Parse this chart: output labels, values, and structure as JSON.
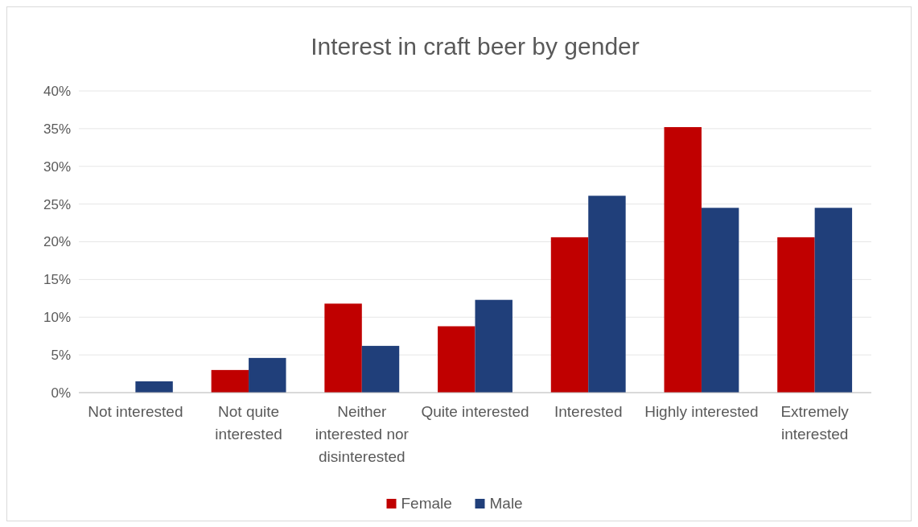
{
  "chart_data": {
    "type": "bar",
    "title": "Interest in craft beer by gender",
    "categories": [
      "Not interested",
      "Not quite interested",
      "Neither interested nor disinterested",
      "Quite interested",
      "Interested",
      "Highly interested",
      "Extremely interested"
    ],
    "series": [
      {
        "name": "Female",
        "color": "#c00000",
        "values": [
          0,
          3.0,
          11.8,
          8.8,
          20.6,
          35.2,
          20.6
        ]
      },
      {
        "name": "Male",
        "color": "#203f7a",
        "values": [
          1.5,
          4.6,
          6.2,
          12.3,
          26.1,
          24.5,
          24.5
        ]
      }
    ],
    "ylim": [
      0,
      40
    ],
    "yticks": [
      {
        "value": 0,
        "label": "0%"
      },
      {
        "value": 5,
        "label": "5%"
      },
      {
        "value": 10,
        "label": "10%"
      },
      {
        "value": 15,
        "label": "15%"
      },
      {
        "value": 20,
        "label": "20%"
      },
      {
        "value": 25,
        "label": "25%"
      },
      {
        "value": 30,
        "label": "30%"
      },
      {
        "value": 35,
        "label": "35%"
      },
      {
        "value": 40,
        "label": "40%"
      }
    ],
    "grid": "y",
    "legend": "bottom"
  }
}
